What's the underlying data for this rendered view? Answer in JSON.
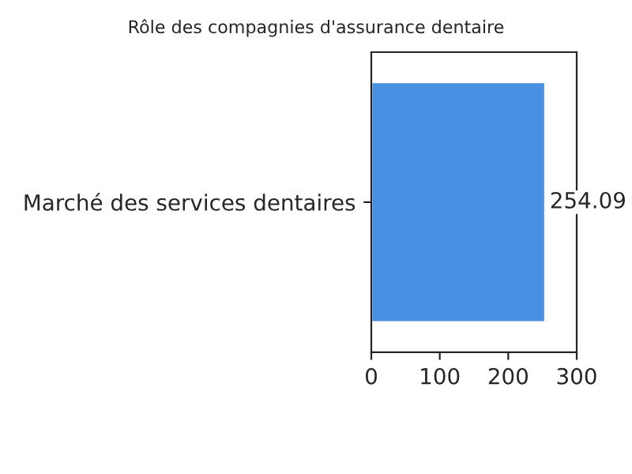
{
  "chart_data": {
    "type": "bar",
    "orientation": "horizontal",
    "title": "Rôle des compagnies d'assurance dentaire",
    "categories": [
      "Marché des services dentaires"
    ],
    "series": [
      {
        "color": "#4a90e2",
        "values": [
          254.09
        ]
      }
    ],
    "xlim": [
      0,
      300
    ],
    "xticks": [
      0,
      100,
      200,
      300
    ],
    "data_labels": true,
    "grid": false,
    "legend": false
  }
}
